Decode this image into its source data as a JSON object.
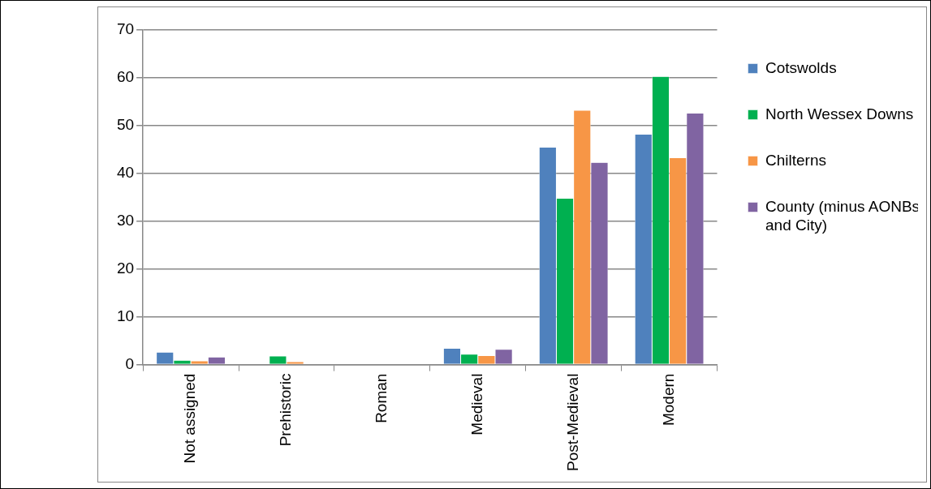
{
  "chart_data": {
    "type": "bar",
    "categories": [
      "Not assigned",
      "Prehistoric",
      "Roman",
      "Medieval",
      "Post-Medieval",
      "Modern"
    ],
    "series": [
      {
        "name": "Cotswolds",
        "color": "#4f81bd",
        "values": [
          2.6,
          0,
          0,
          3.4,
          45.5,
          48.2
        ]
      },
      {
        "name": "North Wessex Downs",
        "color": "#00b050",
        "values": [
          0.9,
          1.8,
          0,
          2.2,
          34.8,
          60.3
        ]
      },
      {
        "name": "Chilterns",
        "color": "#f79646",
        "values": [
          0.8,
          0.6,
          0,
          1.9,
          53.2,
          43.3
        ]
      },
      {
        "name": "County (minus AONBs and City)",
        "color": "#8064a2",
        "values": [
          1.6,
          0,
          0,
          3.2,
          42.3,
          52.6
        ]
      }
    ],
    "ylim": [
      0,
      70
    ],
    "yticks": [
      0,
      10,
      20,
      30,
      40,
      50,
      60,
      70
    ],
    "grid": "y",
    "legend": "right"
  }
}
